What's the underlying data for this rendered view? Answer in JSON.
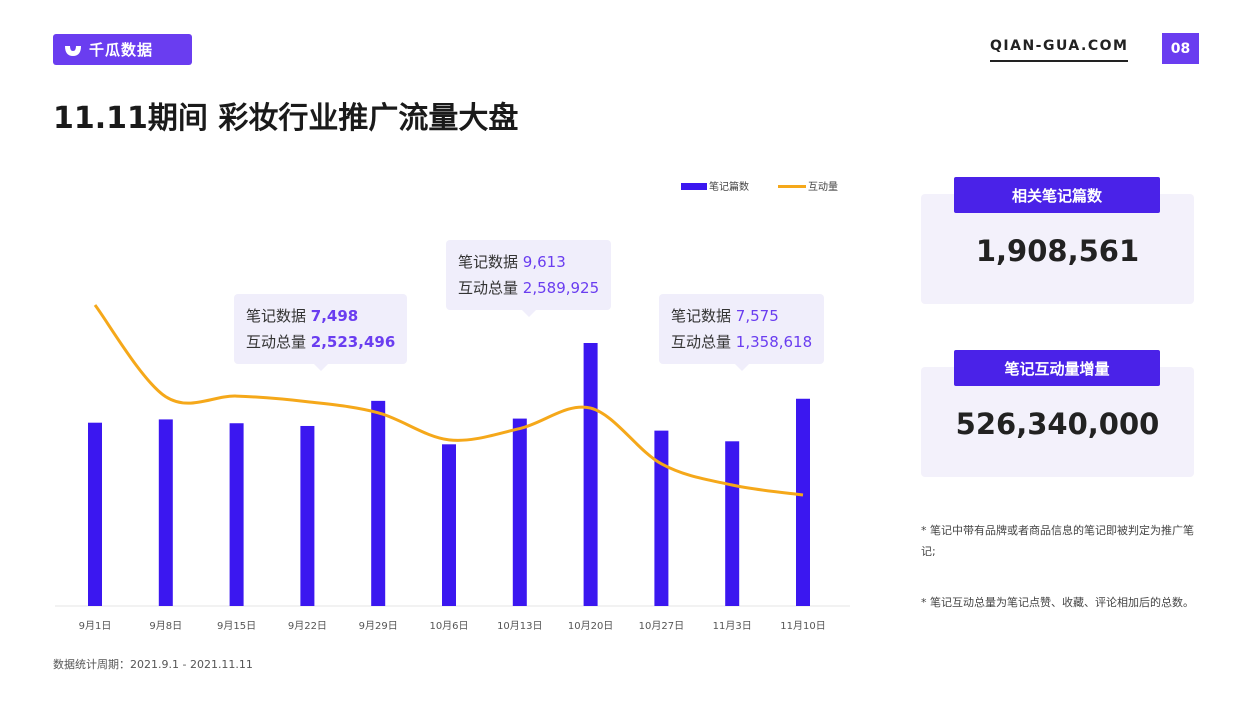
{
  "header": {
    "brand": "千瓜数据",
    "site": "QIAN-GUA.COM",
    "page_number": "08",
    "title": "11.11期间 彩妆行业推广流量大盘"
  },
  "colors": {
    "accent": "#6a3df0",
    "bar": "#3b17f0",
    "line": "#f5a81a"
  },
  "chart_data": {
    "type": "bar+line",
    "categories": [
      "9月1日",
      "9月8日",
      "9月15日",
      "9月22日",
      "9月29日",
      "10月6日",
      "10月13日",
      "10月20日",
      "10月27日",
      "11月3日",
      "11月10日"
    ],
    "series": [
      {
        "name": "笔记篇数",
        "type": "bar",
        "values": [
          6700,
          6820,
          6680,
          6580,
          7498,
          5910,
          6850,
          9613,
          6410,
          6020,
          7575
        ]
      },
      {
        "name": "互动量",
        "type": "line",
        "values": [
          4050000,
          2750000,
          2760000,
          2680000,
          2523496,
          2140000,
          2300000,
          2589925,
          1800000,
          1500000,
          1358618
        ]
      }
    ],
    "legend_position": "top-right",
    "grid": false,
    "annotations": [
      {
        "category": "9月29日",
        "notes_label": "笔记数据",
        "notes_value": "7,498",
        "interact_label": "互动总量",
        "interact_value": "2,523,496",
        "bold": true
      },
      {
        "category": "10月20日",
        "notes_label": "笔记数据",
        "notes_value": "9,613",
        "interact_label": "互动总量",
        "interact_value": "2,589,925",
        "bold": false
      },
      {
        "category": "11月10日",
        "notes_label": "笔记数据",
        "notes_value": "7,575",
        "interact_label": "互动总量",
        "interact_value": "1,358,618",
        "bold": false
      }
    ]
  },
  "stats": [
    {
      "label": "相关笔记篇数",
      "value": "1,908,561"
    },
    {
      "label": "笔记互动量增量",
      "value": "526,340,000"
    }
  ],
  "notes": [
    "* 笔记中带有品牌或者商品信息的笔记即被判定为推广笔记;",
    "* 笔记互动总量为笔记点赞、收藏、评论相加后的总数。"
  ],
  "footer": "数据统计周期：2021.9.1 - 2021.11.11"
}
